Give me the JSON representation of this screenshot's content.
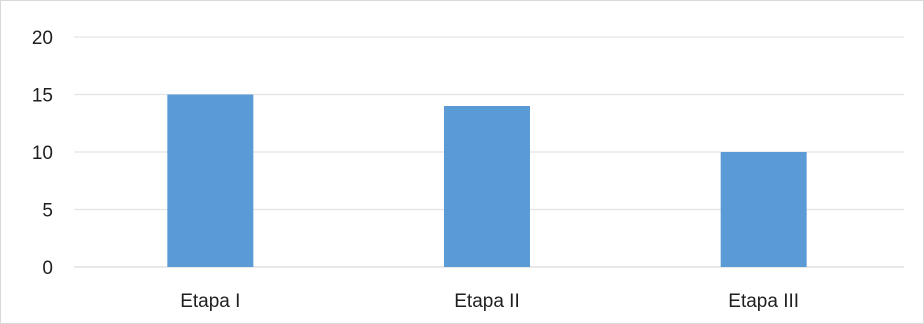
{
  "chart_data": {
    "type": "bar",
    "title": "",
    "xlabel": "",
    "ylabel": "",
    "categories": [
      "Etapa I",
      "Etapa II",
      "Etapa III"
    ],
    "values": [
      15,
      14,
      10
    ],
    "ylim": [
      0,
      20
    ],
    "yticks": [
      0,
      5,
      10,
      15,
      20
    ],
    "grid": true,
    "legend": "none",
    "bar_color": "#5B9BD5"
  }
}
